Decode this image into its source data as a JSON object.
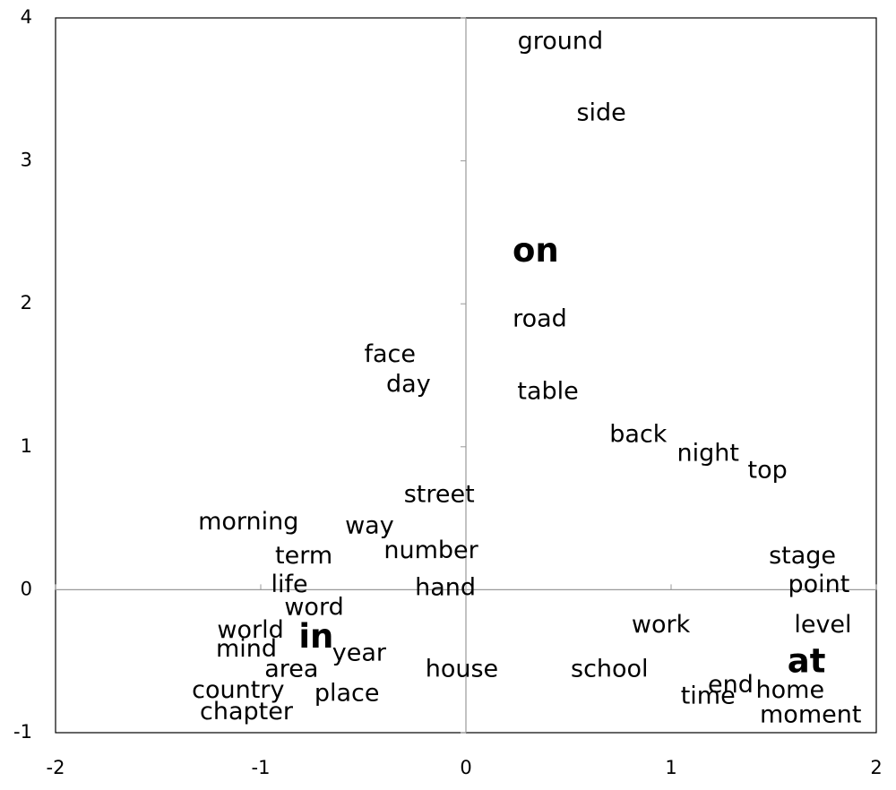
{
  "chart_data": {
    "type": "scatter",
    "labels": [
      "ground",
      "side",
      "on",
      "road",
      "face",
      "day",
      "table",
      "back",
      "night",
      "top",
      "street",
      "morning",
      "way",
      "term",
      "number",
      "stage",
      "life",
      "hand",
      "point",
      "word",
      "world",
      "work",
      "level",
      "in",
      "mind",
      "year",
      "at",
      "area",
      "house",
      "school",
      "end",
      "time",
      "home",
      "country",
      "place",
      "chapter",
      "moment"
    ],
    "x": [
      0.46,
      0.66,
      0.34,
      0.36,
      -0.37,
      -0.28,
      0.4,
      0.84,
      1.18,
      1.47,
      -0.13,
      -1.06,
      -0.47,
      -0.79,
      -0.17,
      1.64,
      -0.86,
      -0.1,
      1.72,
      -0.74,
      -1.05,
      0.95,
      1.74,
      -0.73,
      -1.07,
      -0.52,
      1.66,
      -0.85,
      -0.02,
      0.7,
      1.29,
      1.18,
      1.58,
      -1.11,
      -0.58,
      -1.07,
      1.68
    ],
    "y": [
      3.83,
      3.33,
      2.36,
      1.89,
      1.64,
      1.43,
      1.38,
      1.08,
      0.95,
      0.83,
      0.66,
      0.47,
      0.44,
      0.23,
      0.27,
      0.23,
      0.03,
      0.01,
      0.03,
      -0.13,
      -0.29,
      -0.25,
      -0.25,
      -0.34,
      -0.42,
      -0.45,
      -0.51,
      -0.56,
      -0.56,
      -0.56,
      -0.67,
      -0.75,
      -0.71,
      -0.71,
      -0.73,
      -0.86,
      -0.88
    ],
    "highlight_colors": {
      "2": "#ed7d31",
      "23": "#0070c0",
      "26": "#00b050"
    },
    "xlim": [
      -2,
      2
    ],
    "ylim": [
      -1,
      4
    ],
    "xticks": [
      -2,
      -1,
      0,
      1,
      2
    ],
    "yticks": [
      -1,
      0,
      1,
      2,
      3,
      4
    ]
  }
}
